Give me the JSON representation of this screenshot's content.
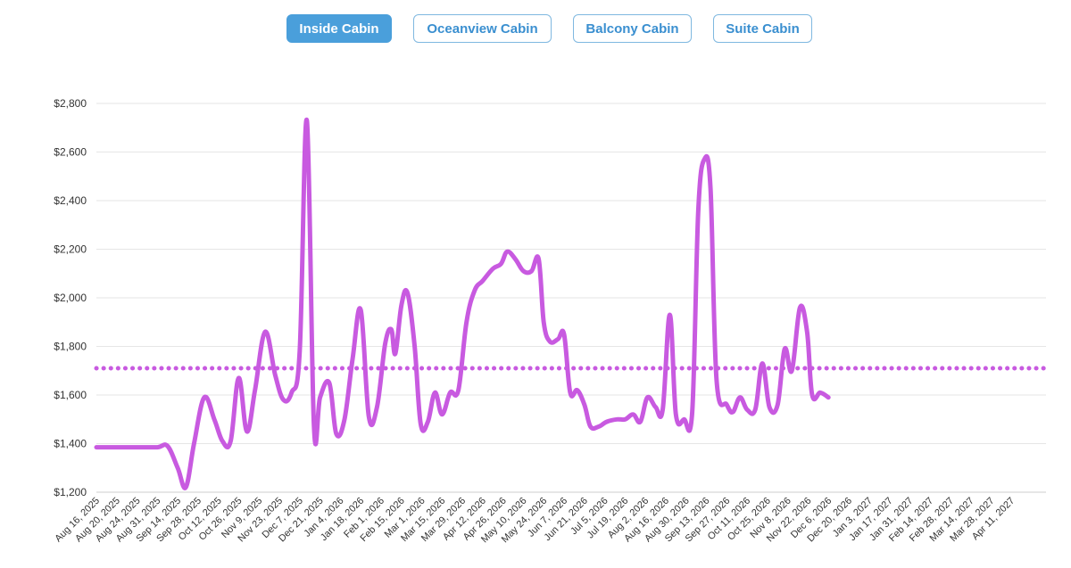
{
  "tabs": [
    {
      "label": "Inside Cabin",
      "active": true
    },
    {
      "label": "Oceanview Cabin",
      "active": false
    },
    {
      "label": "Balcony Cabin",
      "active": false
    },
    {
      "label": "Suite Cabin",
      "active": false
    }
  ],
  "colors": {
    "line": "#c85ae0",
    "average": "#c85ae0",
    "grid": "#e6e6e6",
    "accent": "#4a9fdb"
  },
  "chart_data": {
    "type": "line",
    "title": "",
    "xlabel": "",
    "ylabel": "",
    "ylim": [
      1200,
      2800
    ],
    "yticks": [
      1200,
      1400,
      1600,
      1800,
      2000,
      2200,
      2400,
      2600,
      2800
    ],
    "ytick_labels": [
      "$1,200",
      "$1,400",
      "$1,600",
      "$1,800",
      "$2,000",
      "$2,200",
      "$2,400",
      "$2,600",
      "$2,800"
    ],
    "grid": true,
    "legend": "none",
    "x_categories": [
      "Aug 16, 2025",
      "Aug 20, 2025",
      "Aug 24, 2025",
      "Aug 31, 2025",
      "Sep 14, 2025",
      "Sep 28, 2025",
      "Oct 12, 2025",
      "Oct 26, 2025",
      "Nov 9, 2025",
      "Nov 23, 2025",
      "Dec 7, 2025",
      "Dec 21, 2025",
      "Jan 4, 2026",
      "Jan 18, 2026",
      "Feb 1, 2026",
      "Feb 15, 2026",
      "Mar 1, 2026",
      "Mar 15, 2026",
      "Mar 29, 2026",
      "Apr 12, 2026",
      "Apr 26, 2026",
      "May 10, 2026",
      "May 24, 2026",
      "Jun 7, 2026",
      "Jun 21, 2026",
      "Jul 5, 2026",
      "Jul 19, 2026",
      "Aug 2, 2026",
      "Aug 16, 2026",
      "Aug 30, 2026",
      "Sep 13, 2026",
      "Sep 27, 2026",
      "Oct 11, 2026",
      "Oct 25, 2026",
      "Nov 8, 2026",
      "Nov 22, 2026",
      "Dec 6, 2026",
      "Dec 20, 2026",
      "Jan 3, 2027",
      "Jan 17, 2027",
      "Jan 31, 2027",
      "Feb 14, 2027",
      "Feb 28, 2027",
      "Mar 14, 2027",
      "Mar 28, 2027",
      "Apr 11, 2027"
    ],
    "x_range": [
      0,
      46.7
    ],
    "average": 1710,
    "series": [
      {
        "points": [
          [
            0,
            1385
          ],
          [
            1,
            1385
          ],
          [
            2,
            1385
          ],
          [
            3,
            1385
          ],
          [
            3.5,
            1390
          ],
          [
            4,
            1300
          ],
          [
            4.4,
            1220
          ],
          [
            4.8,
            1400
          ],
          [
            5.3,
            1590
          ],
          [
            5.8,
            1500
          ],
          [
            6.2,
            1410
          ],
          [
            6.6,
            1410
          ],
          [
            7.0,
            1670
          ],
          [
            7.4,
            1450
          ],
          [
            7.8,
            1620
          ],
          [
            8.3,
            1860
          ],
          [
            8.8,
            1680
          ],
          [
            9.2,
            1580
          ],
          [
            9.6,
            1610
          ],
          [
            10.0,
            1780
          ],
          [
            10.35,
            2730
          ],
          [
            10.7,
            1470
          ],
          [
            11.0,
            1590
          ],
          [
            11.45,
            1650
          ],
          [
            11.8,
            1440
          ],
          [
            12.2,
            1500
          ],
          [
            12.6,
            1750
          ],
          [
            13.0,
            1950
          ],
          [
            13.4,
            1510
          ],
          [
            13.8,
            1550
          ],
          [
            14.2,
            1810
          ],
          [
            14.5,
            1870
          ],
          [
            14.7,
            1770
          ],
          [
            15.0,
            1970
          ],
          [
            15.3,
            2020
          ],
          [
            15.65,
            1800
          ],
          [
            15.95,
            1480
          ],
          [
            16.3,
            1490
          ],
          [
            16.65,
            1610
          ],
          [
            17.0,
            1520
          ],
          [
            17.4,
            1610
          ],
          [
            17.8,
            1620
          ],
          [
            18.2,
            1900
          ],
          [
            18.6,
            2030
          ],
          [
            19.0,
            2070
          ],
          [
            19.5,
            2120
          ],
          [
            19.9,
            2140
          ],
          [
            20.2,
            2190
          ],
          [
            20.6,
            2160
          ],
          [
            21.0,
            2110
          ],
          [
            21.4,
            2110
          ],
          [
            21.75,
            2160
          ],
          [
            22.0,
            1900
          ],
          [
            22.3,
            1820
          ],
          [
            22.7,
            1830
          ],
          [
            23.0,
            1850
          ],
          [
            23.3,
            1610
          ],
          [
            23.65,
            1620
          ],
          [
            24.0,
            1560
          ],
          [
            24.3,
            1470
          ],
          [
            24.7,
            1470
          ],
          [
            25.1,
            1490
          ],
          [
            25.6,
            1500
          ],
          [
            26.0,
            1500
          ],
          [
            26.4,
            1520
          ],
          [
            26.75,
            1490
          ],
          [
            27.1,
            1590
          ],
          [
            27.5,
            1550
          ],
          [
            27.85,
            1540
          ],
          [
            28.2,
            1930
          ],
          [
            28.5,
            1520
          ],
          [
            28.9,
            1500
          ],
          [
            29.3,
            1530
          ],
          [
            29.6,
            2360
          ],
          [
            29.9,
            2570
          ],
          [
            30.2,
            2450
          ],
          [
            30.5,
            1660
          ],
          [
            31.0,
            1560
          ],
          [
            31.3,
            1530
          ],
          [
            31.65,
            1590
          ],
          [
            32.0,
            1540
          ],
          [
            32.4,
            1540
          ],
          [
            32.75,
            1730
          ],
          [
            33.1,
            1550
          ],
          [
            33.5,
            1560
          ],
          [
            33.85,
            1790
          ],
          [
            34.2,
            1700
          ],
          [
            34.6,
            1960
          ],
          [
            34.95,
            1860
          ],
          [
            35.2,
            1600
          ],
          [
            35.6,
            1610
          ],
          [
            36.0,
            1590
          ]
        ]
      }
    ]
  }
}
